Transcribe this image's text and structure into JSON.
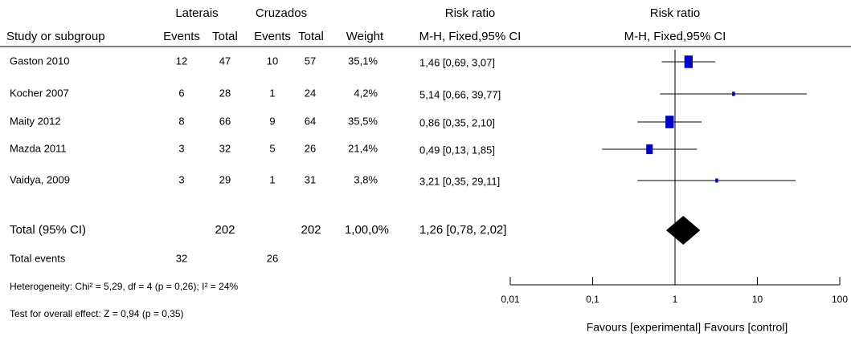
{
  "chart_data": {
    "type": "forest",
    "headers": {
      "group_exp": "Laterais",
      "group_ctl": "Cruzados",
      "rr_table": "Risk ratio",
      "rr_plot": "Risk ratio",
      "study": "Study or subgroup",
      "events_exp": "Events",
      "total_exp": "Total",
      "events_ctl": "Events",
      "total_ctl": "Total",
      "weight": "Weight",
      "method_table": "M-H, Fixed,95% CI",
      "method_plot": "M-H, Fixed,95% CI"
    },
    "categories": [
      "Gaston 2010",
      "Kocher 2007",
      "Maity 2012",
      "Mazda 2011",
      "Vaidya, 2009"
    ],
    "events_exp": [
      12,
      6,
      8,
      3,
      3
    ],
    "total_exp": [
      47,
      28,
      66,
      32,
      29
    ],
    "events_ctl": [
      10,
      1,
      9,
      5,
      1
    ],
    "total_ctl": [
      57,
      24,
      64,
      26,
      31
    ],
    "weights": [
      35.1,
      4.2,
      35.5,
      21.4,
      3.8
    ],
    "weight_labels": [
      "35,1%",
      "4,2%",
      "35,5%",
      "21,4%",
      "3,8%"
    ],
    "values": [
      1.46,
      5.14,
      0.86,
      0.49,
      3.21
    ],
    "lower": [
      0.69,
      0.66,
      0.35,
      0.13,
      0.35
    ],
    "upper": [
      3.07,
      39.77,
      2.1,
      1.85,
      29.11
    ],
    "value_labels": [
      "1,46 [0,69, 3,07]",
      "5,14 [0,66, 39,77]",
      "0,86 [0,35, 2,10]",
      "0,49 [0,13, 1,85]",
      "3,21 [0,35, 29,11]"
    ],
    "color": "#0000cc",
    "total": {
      "label": "Total (95% CI)",
      "total_exp": 202,
      "total_ctl": 202,
      "weight_label": "1,00,0%",
      "value": 1.26,
      "lower": 0.78,
      "upper": 2.02,
      "value_label": "1,26 [0,78, 2,02]",
      "color": "#000000"
    },
    "total_events": {
      "label": "Total events",
      "events_exp": 32,
      "events_ctl": 26
    },
    "heterogeneity": "Heterogeneity: Chi² = 5,29, df = 4 (p = 0,26); I² = 24%",
    "overall_effect": "Test for overall effect: Z = 0,94 (p = 0,35)",
    "x_scale": "log",
    "xlim": [
      0.01,
      100
    ],
    "xticks": [
      {
        "value": 0.01,
        "label": "0,01"
      },
      {
        "value": 0.1,
        "label": "0,1"
      },
      1,
      10,
      100
    ],
    "xlabel": "Favours [experimental] Favours [control]"
  }
}
